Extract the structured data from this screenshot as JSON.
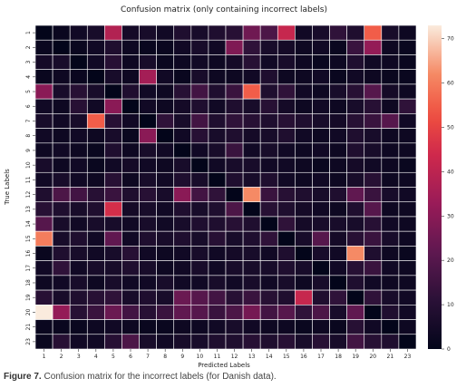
{
  "chart_data": {
    "type": "heatmap",
    "title": "Confusion matrix (only containing incorrect labels)",
    "xlabel": "Predicted Labels",
    "ylabel": "True Labels",
    "x_categories": [
      "1",
      "2",
      "3",
      "4",
      "5",
      "6",
      "7",
      "8",
      "9",
      "10",
      "11",
      "12",
      "13",
      "14",
      "15",
      "16",
      "17",
      "18",
      "19",
      "20",
      "21",
      "23"
    ],
    "y_categories": [
      "1",
      "2",
      "3",
      "4",
      "5",
      "6",
      "7",
      "8",
      "9",
      "10",
      "11",
      "12",
      "13",
      "14",
      "15",
      "16",
      "17",
      "18",
      "19",
      "20",
      "21",
      "23"
    ],
    "color_range": [
      0,
      73
    ],
    "colorbar_ticks": [
      0,
      10,
      20,
      30,
      40,
      50,
      60,
      70
    ],
    "colormap": "rocket",
    "grid": true,
    "values": [
      [
        0,
        2,
        4,
        6,
        38,
        5,
        6,
        4,
        8,
        6,
        8,
        10,
        25,
        18,
        42,
        4,
        6,
        12,
        8,
        55,
        6,
        3
      ],
      [
        2,
        0,
        2,
        4,
        8,
        3,
        2,
        2,
        4,
        6,
        4,
        28,
        12,
        6,
        5,
        3,
        4,
        2,
        14,
        32,
        3,
        2
      ],
      [
        5,
        6,
        0,
        4,
        10,
        3,
        6,
        2,
        3,
        4,
        3,
        5,
        10,
        4,
        6,
        3,
        2,
        3,
        8,
        4,
        3,
        2
      ],
      [
        2,
        3,
        2,
        0,
        6,
        3,
        35,
        4,
        2,
        6,
        3,
        3,
        4,
        8,
        3,
        3,
        4,
        2,
        4,
        3,
        2,
        2
      ],
      [
        30,
        6,
        10,
        6,
        0,
        8,
        4,
        3,
        10,
        16,
        8,
        14,
        55,
        8,
        12,
        4,
        3,
        6,
        10,
        20,
        5,
        3
      ],
      [
        4,
        3,
        10,
        4,
        30,
        0,
        4,
        3,
        5,
        8,
        4,
        8,
        6,
        10,
        5,
        3,
        4,
        3,
        6,
        10,
        3,
        12
      ],
      [
        6,
        4,
        6,
        55,
        10,
        4,
        0,
        12,
        6,
        16,
        8,
        12,
        10,
        8,
        10,
        8,
        6,
        5,
        10,
        14,
        20,
        4
      ],
      [
        4,
        3,
        4,
        3,
        6,
        2,
        30,
        0,
        4,
        10,
        6,
        8,
        5,
        6,
        8,
        4,
        3,
        4,
        8,
        6,
        3,
        3
      ],
      [
        3,
        4,
        3,
        2,
        8,
        3,
        6,
        4,
        0,
        4,
        6,
        14,
        4,
        6,
        4,
        3,
        4,
        3,
        8,
        6,
        3,
        3
      ],
      [
        6,
        3,
        4,
        2,
        4,
        5,
        4,
        3,
        6,
        0,
        4,
        6,
        6,
        4,
        4,
        3,
        2,
        3,
        5,
        4,
        3,
        2
      ],
      [
        4,
        6,
        4,
        3,
        10,
        3,
        6,
        4,
        8,
        6,
        0,
        8,
        6,
        8,
        4,
        3,
        4,
        3,
        6,
        10,
        3,
        3
      ],
      [
        8,
        18,
        16,
        10,
        14,
        8,
        10,
        6,
        30,
        16,
        12,
        0,
        62,
        14,
        10,
        8,
        6,
        8,
        22,
        14,
        6,
        4
      ],
      [
        10,
        8,
        6,
        8,
        45,
        5,
        6,
        4,
        8,
        6,
        8,
        18,
        0,
        10,
        8,
        5,
        4,
        3,
        8,
        20,
        3,
        3
      ],
      [
        20,
        6,
        4,
        6,
        6,
        4,
        6,
        4,
        6,
        8,
        8,
        10,
        8,
        0,
        12,
        5,
        6,
        6,
        6,
        10,
        4,
        3
      ],
      [
        60,
        6,
        8,
        4,
        22,
        4,
        8,
        6,
        8,
        6,
        10,
        6,
        8,
        12,
        0,
        6,
        20,
        5,
        10,
        14,
        6,
        3
      ],
      [
        2,
        8,
        6,
        4,
        6,
        10,
        4,
        3,
        4,
        6,
        4,
        5,
        6,
        4,
        8,
        0,
        6,
        4,
        62,
        8,
        3,
        2
      ],
      [
        4,
        12,
        4,
        6,
        6,
        8,
        6,
        3,
        4,
        6,
        4,
        6,
        6,
        6,
        8,
        6,
        0,
        4,
        10,
        14,
        4,
        3
      ],
      [
        3,
        4,
        6,
        3,
        6,
        4,
        4,
        6,
        4,
        4,
        6,
        4,
        6,
        4,
        6,
        3,
        6,
        0,
        8,
        4,
        3,
        3
      ],
      [
        10,
        6,
        8,
        10,
        12,
        6,
        8,
        6,
        24,
        20,
        16,
        10,
        14,
        10,
        8,
        42,
        8,
        12,
        0,
        12,
        6,
        4
      ],
      [
        73,
        32,
        10,
        14,
        24,
        16,
        10,
        14,
        22,
        20,
        14,
        18,
        26,
        16,
        20,
        12,
        18,
        6,
        22,
        0,
        8,
        4
      ],
      [
        2,
        2,
        2,
        3,
        4,
        3,
        2,
        2,
        3,
        3,
        4,
        6,
        4,
        3,
        3,
        2,
        3,
        2,
        10,
        4,
        0,
        3
      ],
      [
        2,
        10,
        4,
        4,
        10,
        18,
        6,
        4,
        6,
        6,
        8,
        8,
        10,
        8,
        10,
        6,
        10,
        6,
        16,
        10,
        8,
        0
      ]
    ]
  },
  "caption": {
    "label": "Figure 7.",
    "text": " Confusion matrix for the incorrect labels (for Danish data)."
  }
}
